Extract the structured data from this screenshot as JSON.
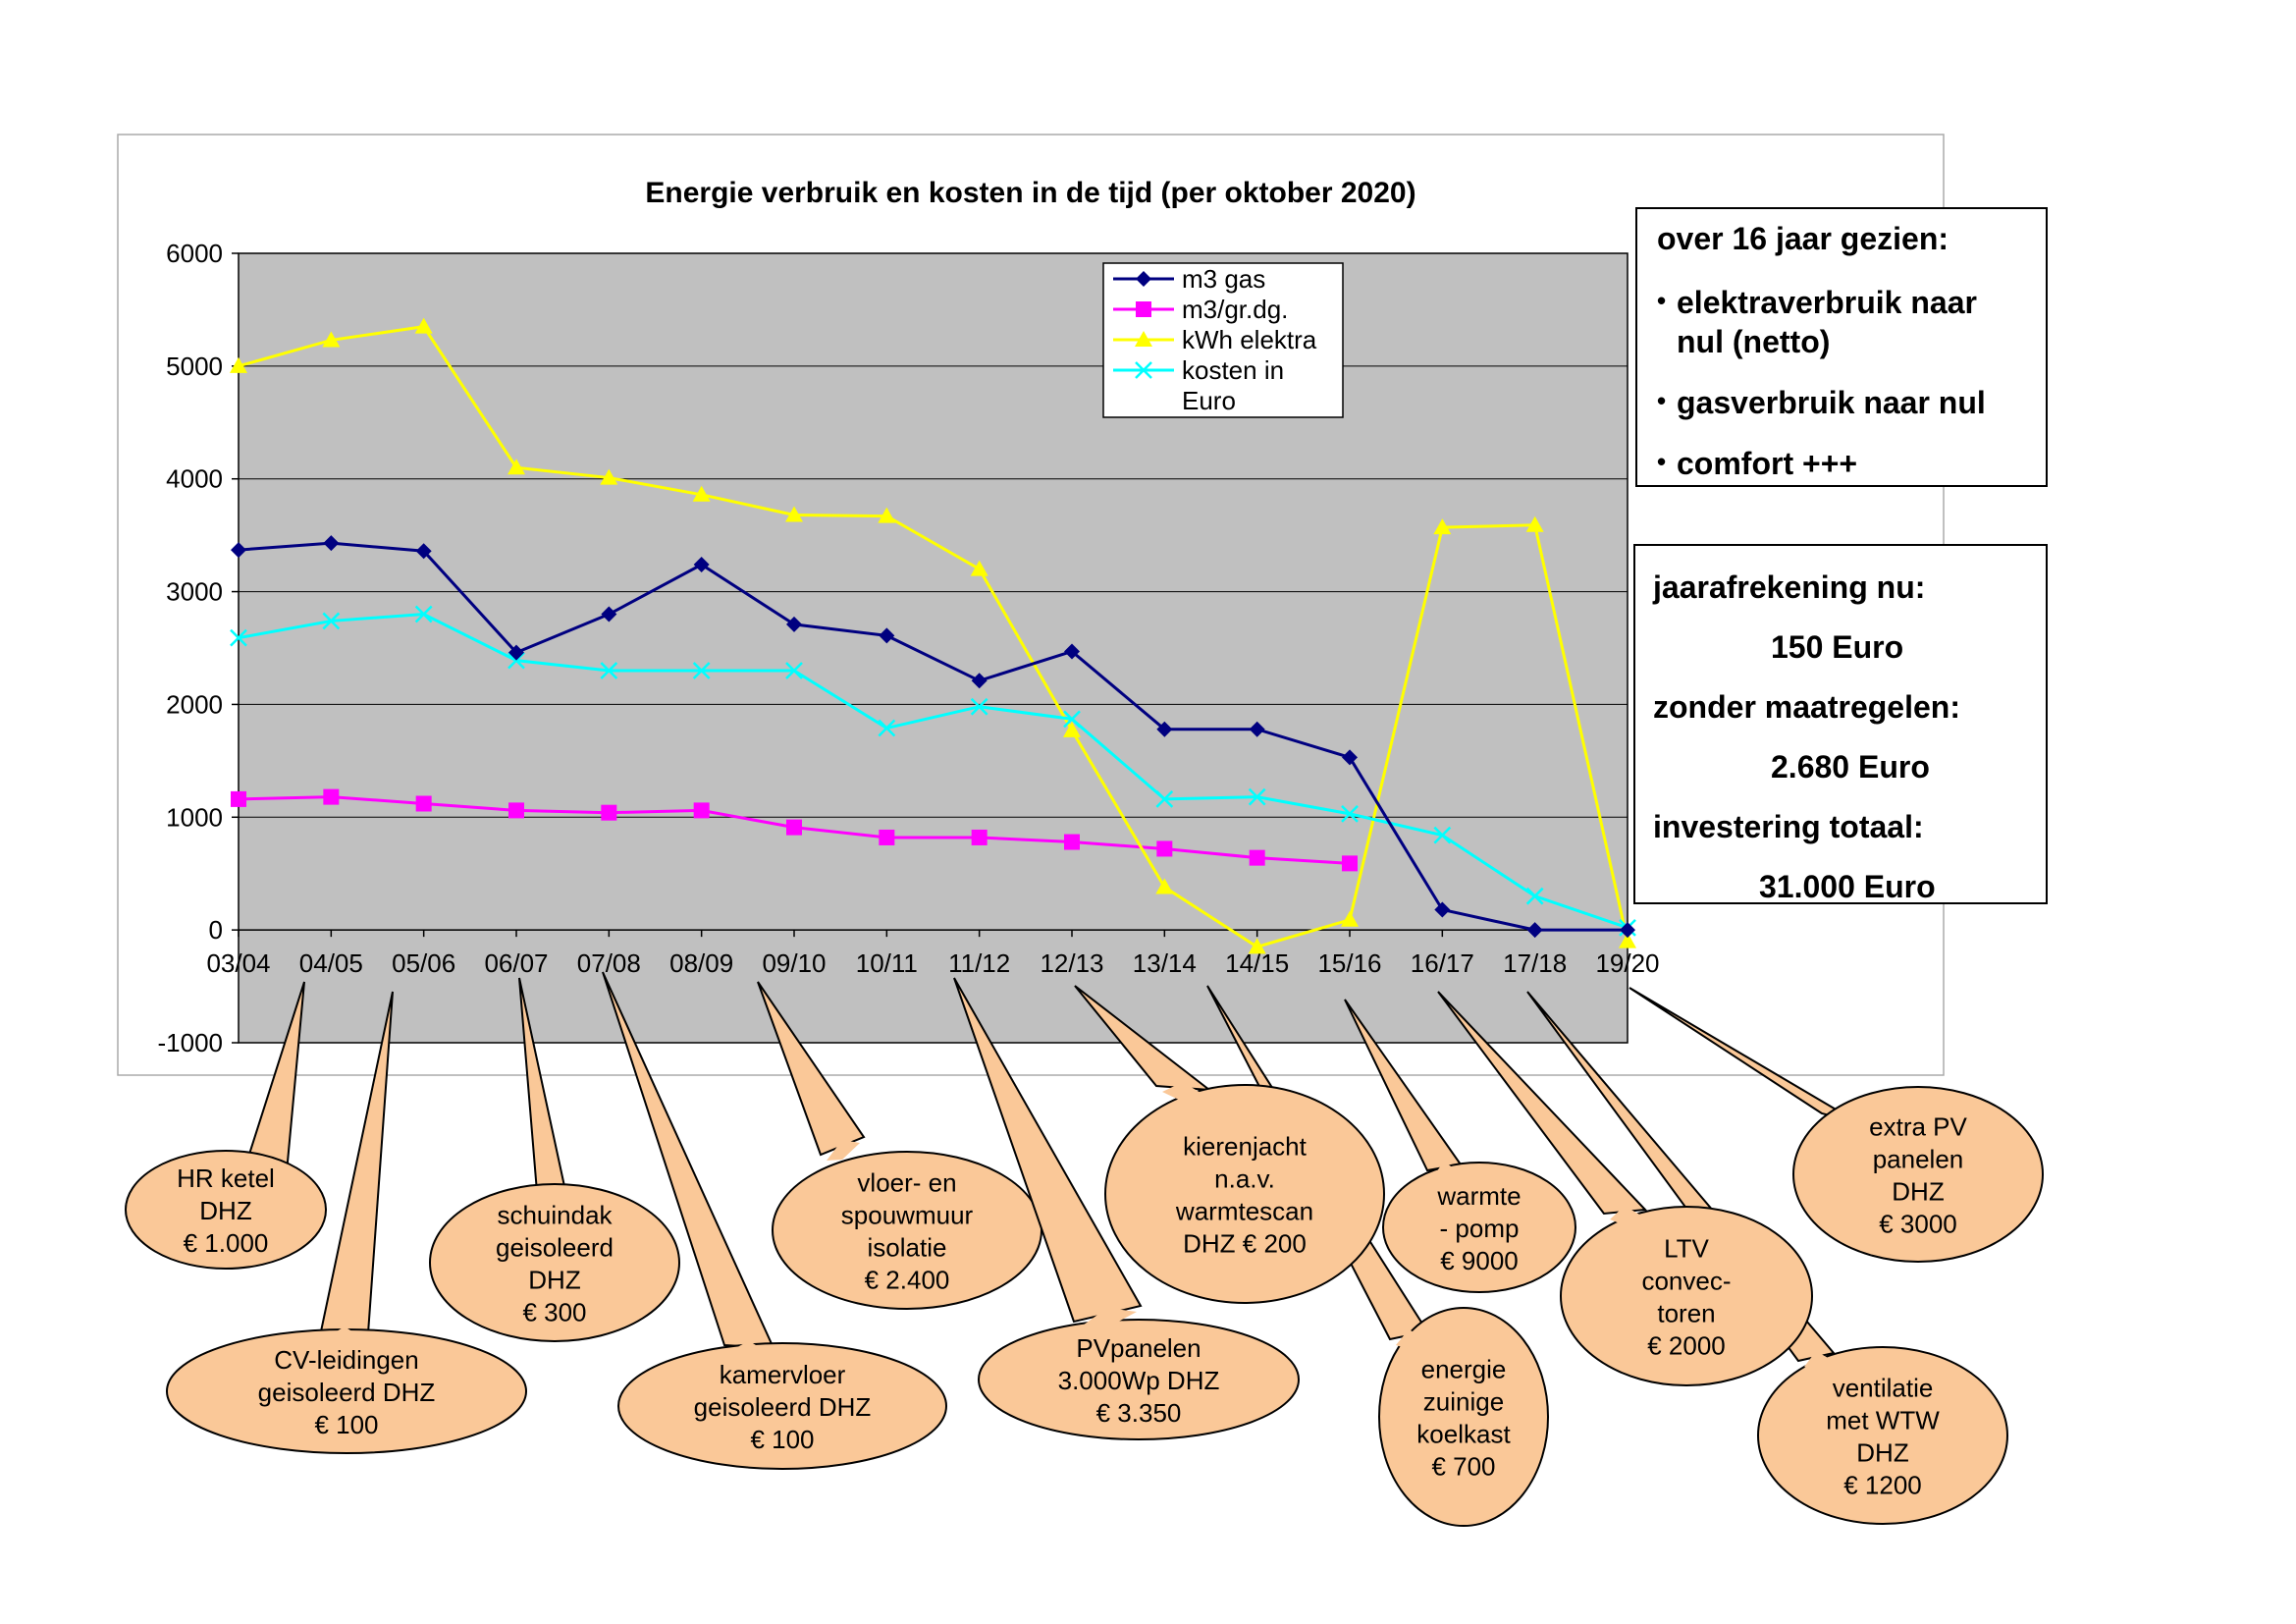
{
  "chart_data": {
    "type": "line",
    "title": "Energie verbruik en kosten in de tijd (per oktober 2020)",
    "xlabel": "",
    "ylabel": "",
    "ylim": [
      -1000,
      6000
    ],
    "yticks": [
      "6000",
      "5000",
      "4000",
      "3000",
      "2000",
      "1000",
      "0",
      "-1000"
    ],
    "grid": true,
    "legend_position": "top-right",
    "categories": [
      "03/04",
      "04/05",
      "05/06",
      "06/07",
      "07/08",
      "08/09",
      "09/10",
      "10/11",
      "11/12",
      "12/13",
      "13/14",
      "14/15",
      "15/16",
      "16/17",
      "17/18",
      "19/20"
    ],
    "series": [
      {
        "name": "m3 gas",
        "color": "#000080",
        "marker": "diamond",
        "values": [
          3370,
          3430,
          3360,
          2460,
          2800,
          3240,
          2710,
          2610,
          2210,
          2470,
          1780,
          1780,
          1530,
          180,
          0,
          0
        ]
      },
      {
        "name": "m3/gr.dg.",
        "color": "#ff00ff",
        "marker": "square",
        "values": [
          1160,
          1180,
          1120,
          1060,
          1040,
          1060,
          910,
          820,
          820,
          780,
          720,
          640,
          590,
          null,
          null,
          null
        ]
      },
      {
        "name": "kWh elektra",
        "color": "#ffff00",
        "marker": "triangle",
        "values": [
          5000,
          5230,
          5350,
          4100,
          4010,
          3860,
          3680,
          3670,
          3200,
          1770,
          380,
          -150,
          90,
          3570,
          3590,
          -100
        ]
      },
      {
        "name": "kosten in Euro",
        "color": "#00ffff",
        "marker": "x",
        "values": [
          2590,
          2740,
          2800,
          2390,
          2300,
          2300,
          2300,
          1790,
          1980,
          1870,
          1160,
          1180,
          1030,
          840,
          300,
          20
        ]
      }
    ]
  },
  "info_box_1": {
    "heading": "over 16 jaar gezien:",
    "bullets": [
      "elektraverbruik naar",
      "nul (netto)",
      "gasverbruik naar nul",
      "comfort +++"
    ],
    "bullet_symbol": "•"
  },
  "info_box_2": {
    "line1": "jaarafrekening nu:",
    "line2": "150 Euro",
    "line3": "zonder maatregelen:",
    "line4": "2.680 Euro",
    "line5": "investering totaal:",
    "line6": "31.000 Euro"
  },
  "callout_fill": "#fac898",
  "callouts": [
    {
      "category": "04/05",
      "lines": [
        "HR ketel",
        "DHZ",
        "€ 1.000"
      ]
    },
    {
      "category": "05/06",
      "lines": [
        "CV-leidingen",
        "geisoleerd DHZ",
        "€ 100"
      ]
    },
    {
      "category": "06/07",
      "lines": [
        "schuindak",
        "geisoleerd",
        "DHZ",
        "€ 300"
      ]
    },
    {
      "category": "07/08",
      "lines": [
        "kamervloer",
        "geisoleerd DHZ",
        "€ 100"
      ]
    },
    {
      "category": "09/10",
      "lines": [
        "vloer- en",
        "spouwmuur",
        "isolatie",
        "€ 2.400"
      ]
    },
    {
      "category": "11/12",
      "lines": [
        "PVpanelen",
        "3.000Wp DHZ",
        "€ 3.350"
      ]
    },
    {
      "category": "12/13",
      "lines": [
        "kierenjacht",
        "n.a.v.",
        "warmtescan",
        "DHZ  € 200"
      ]
    },
    {
      "category": "13/14",
      "lines": [
        "energie",
        "zuinige",
        "koelkast",
        "€ 700"
      ]
    },
    {
      "category": "15/16",
      "lines": [
        "warmte",
        "- pomp",
        "€ 9000"
      ]
    },
    {
      "category": "16/17",
      "lines": [
        "LTV",
        "convec-",
        "toren",
        "€ 2000"
      ]
    },
    {
      "category": "17/18",
      "lines": [
        "ventilatie",
        "met WTW",
        "DHZ",
        "€ 1200"
      ]
    },
    {
      "category": "19/20",
      "lines": [
        "extra PV",
        "panelen",
        "DHZ",
        "€ 3000"
      ]
    }
  ]
}
